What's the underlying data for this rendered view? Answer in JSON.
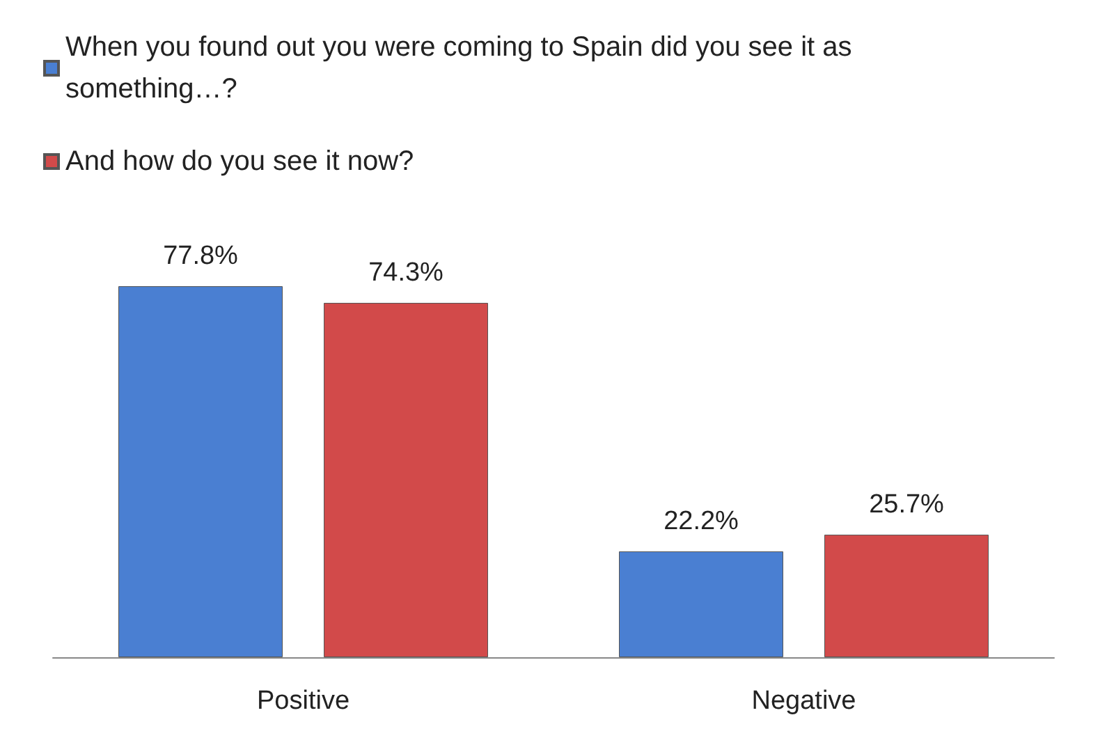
{
  "chart_data": {
    "type": "bar",
    "categories": [
      "Positive",
      "Negative"
    ],
    "series": [
      {
        "name": "When you found out you were coming to Spain did you see it as something…?",
        "color": "#4a7fd2",
        "values": [
          77.8,
          22.2
        ],
        "value_labels": [
          "77.8%",
          "22.2%"
        ]
      },
      {
        "name": "And how do you see it now?",
        "color": "#d24a4a",
        "values": [
          74.3,
          25.7
        ],
        "value_labels": [
          "74.3%",
          "25.7%"
        ]
      }
    ],
    "legend": "top left",
    "tick_labels": "x"
  }
}
